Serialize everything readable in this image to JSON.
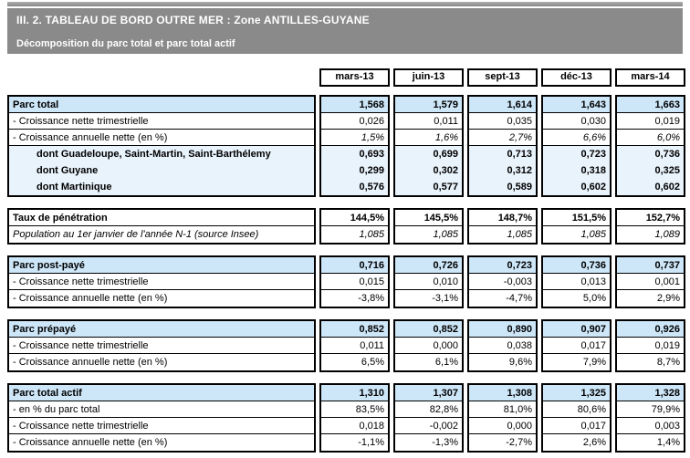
{
  "header": {
    "title": "III. 2. TABLEAU DE BORD OUTRE MER : Zone ANTILLES-GUYANE",
    "subtitle": "Décomposition du parc total et parc total actif"
  },
  "columns": [
    "mars-13",
    "juin-13",
    "sept-13",
    "déc-13",
    "mars-14"
  ],
  "sections": [
    {
      "name": "parc-total",
      "rows": [
        {
          "label": "Parc total",
          "bold": true,
          "bg": "header",
          "sep": true,
          "values": [
            "1,568",
            "1,579",
            "1,614",
            "1,643",
            "1,663"
          ]
        },
        {
          "label": "- Croissance nette trimestrielle",
          "sep": true,
          "values": [
            "0,026",
            "0,011",
            "0,035",
            "0,030",
            "0,019"
          ]
        },
        {
          "label": "- Croissance annuelle nette (en %)",
          "italic": "values",
          "sep": true,
          "values": [
            "1,5%",
            "1,6%",
            "2,7%",
            "6,6%",
            "6,0%"
          ]
        },
        {
          "label": "dont Guadeloupe, Saint-Martin, Saint-Barthélemy",
          "bold": true,
          "bg": "dont",
          "indent": true,
          "sep": false,
          "values": [
            "0,693",
            "0,699",
            "0,713",
            "0,723",
            "0,736"
          ]
        },
        {
          "label": "dont Guyane",
          "bold": true,
          "bg": "dont",
          "indent": true,
          "sep": false,
          "values": [
            "0,299",
            "0,302",
            "0,312",
            "0,318",
            "0,325"
          ]
        },
        {
          "label": "dont Martinique",
          "bold": true,
          "bg": "dont",
          "indent": true,
          "sep": false,
          "values": [
            "0,576",
            "0,577",
            "0,589",
            "0,602",
            "0,602"
          ]
        }
      ]
    },
    {
      "name": "taux-de-penetration",
      "rows": [
        {
          "label": "Taux de pénétration",
          "bold": true,
          "sep": true,
          "values": [
            "144,5%",
            "145,5%",
            "148,7%",
            "151,5%",
            "152,7%"
          ]
        },
        {
          "label": "Population au 1er janvier de l'année N-1 (source Insee)",
          "italic": "all",
          "sep": false,
          "values": [
            "1,085",
            "1,085",
            "1,085",
            "1,085",
            "1,089"
          ]
        }
      ]
    },
    {
      "name": "parc-post-paye",
      "rows": [
        {
          "label": "Parc post-payé",
          "bold": true,
          "bg": "header",
          "sep": true,
          "values": [
            "0,716",
            "0,726",
            "0,723",
            "0,736",
            "0,737"
          ]
        },
        {
          "label": "- Croissance nette trimestrielle",
          "sep": true,
          "values": [
            "0,015",
            "0,010",
            "-0,003",
            "0,013",
            "0,001"
          ]
        },
        {
          "label": "- Croissance annuelle nette (en %)",
          "sep": false,
          "values": [
            "-3,8%",
            "-3,1%",
            "-4,7%",
            "5,0%",
            "2,9%"
          ]
        }
      ]
    },
    {
      "name": "parc-prepaye",
      "rows": [
        {
          "label": "Parc prépayé",
          "bold": true,
          "bg": "header",
          "sep": true,
          "values": [
            "0,852",
            "0,852",
            "0,890",
            "0,907",
            "0,926"
          ]
        },
        {
          "label": "- Croissance nette trimestrielle",
          "sep": true,
          "values": [
            "0,011",
            "0,000",
            "0,038",
            "0,017",
            "0,019"
          ]
        },
        {
          "label": "- Croissance annuelle nette (en %)",
          "sep": false,
          "values": [
            "6,5%",
            "6,1%",
            "9,6%",
            "7,9%",
            "8,7%"
          ]
        }
      ]
    },
    {
      "name": "parc-total-actif",
      "rows": [
        {
          "label": "Parc total actif",
          "bold": true,
          "bg": "header",
          "sep": true,
          "values": [
            "1,310",
            "1,307",
            "1,308",
            "1,325",
            "1,328"
          ]
        },
        {
          "label": "- en % du parc total",
          "sep": true,
          "values": [
            "83,5%",
            "82,8%",
            "81,0%",
            "80,6%",
            "79,9%"
          ]
        },
        {
          "label": "- Croissance nette trimestrielle",
          "sep": true,
          "values": [
            "0,018",
            "-0,002",
            "0,000",
            "0,017",
            "0,003"
          ]
        },
        {
          "label": "- Croissance annuelle nette (en %)",
          "sep": false,
          "values": [
            "-1,1%",
            "-1,3%",
            "-2,7%",
            "2,6%",
            "1,4%"
          ]
        }
      ]
    }
  ],
  "colors": {
    "header_bar": "#8a8a8a",
    "section_header_row_bg": "#cde6f8",
    "dont_row_bg": "#e9f3fc",
    "border": "#000000",
    "header_text": "#ffffff"
  }
}
